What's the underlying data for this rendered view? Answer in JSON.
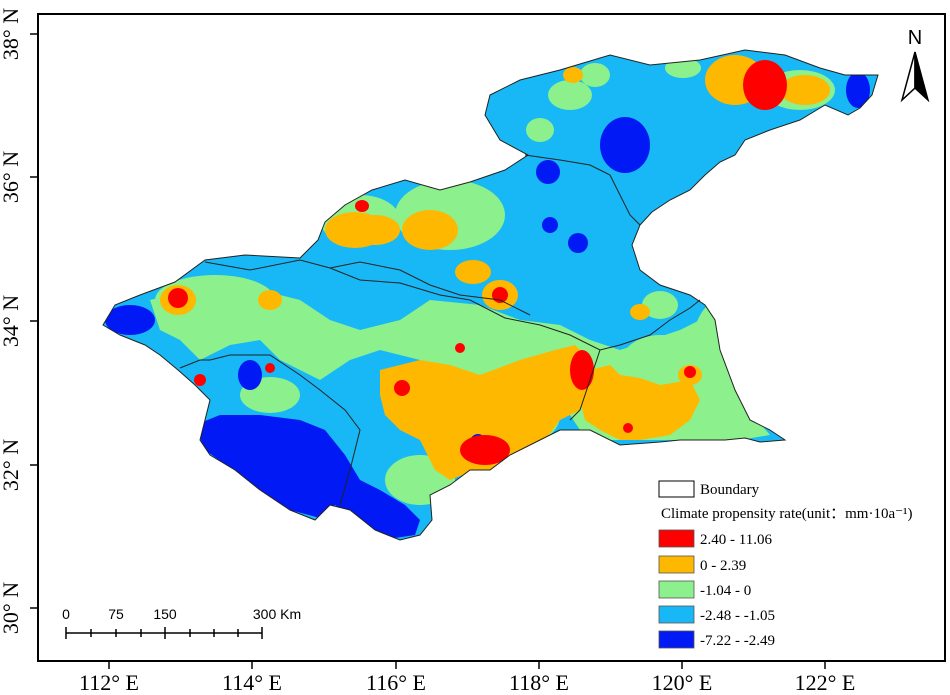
{
  "map": {
    "y_axis_labels": [
      "38° N",
      "36° N",
      "34° N",
      "32° N",
      "30° N"
    ],
    "x_axis_labels": [
      "112° E",
      "114° E",
      "116° E",
      "118° E",
      "120° E",
      "122° E"
    ]
  },
  "north_arrow": {
    "label": "N",
    "icon": "north-arrow-icon"
  },
  "scale_bar": {
    "labels": [
      "0",
      "75",
      "150",
      "300 Km"
    ]
  },
  "legend": {
    "boundary_label": "Boundary",
    "title": "Climate propensity rate(unit：mm·10a⁻¹)",
    "items": [
      {
        "label": "2.40 - 11.06",
        "color": "#ff0000"
      },
      {
        "label": "0 - 2.39",
        "color": "#ffb800"
      },
      {
        "label": "-1.04 - 0",
        "color": "#8cf08c"
      },
      {
        "label": "-2.48 - -1.05",
        "color": "#17b8f5"
      },
      {
        "label": "-7.22 - -2.49",
        "color": "#0019f5"
      }
    ]
  }
}
